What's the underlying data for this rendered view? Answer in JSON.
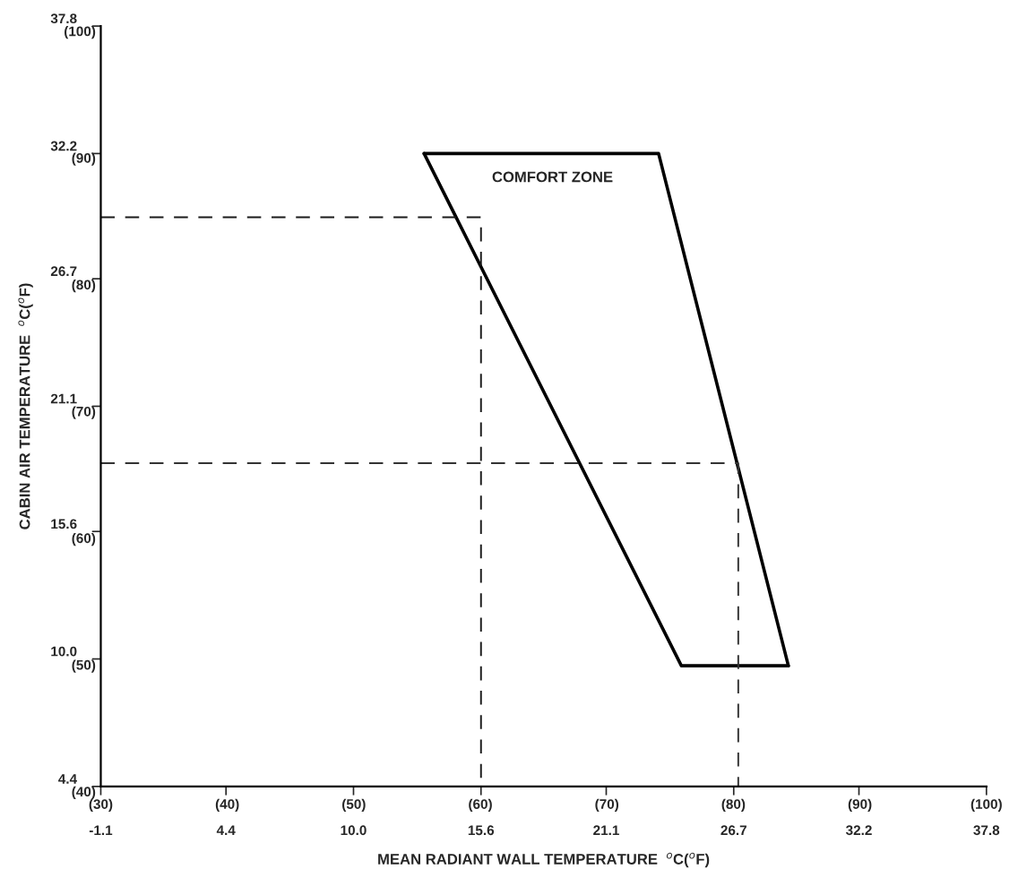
{
  "chart_data": {
    "type": "line",
    "xlabel": "MEAN RADIANT WALL TEMPERATURE  $^{o}$C($^{o}$F)",
    "ylabel": "CABIN AIR TEMPERATURE  $^{o}$C($^{o}$F)",
    "xlim": [
      -1.1,
      37.8
    ],
    "ylim": [
      4.4,
      37.8
    ],
    "xticks": [
      -1.1,
      4.4,
      {
        "value": 10,
        "label": "10.0"
      },
      15.6,
      21.1,
      26.7,
      32.2,
      37.8
    ],
    "yticks": [
      4.4,
      {
        "value": 10,
        "label": "10.0"
      },
      15.6,
      21.1,
      26.7,
      32.2,
      37.8
    ],
    "x2lim": [
      30,
      100
    ],
    "x2ticks": [
      {
        "value": 30,
        "label": "(30)"
      },
      {
        "value": 40,
        "label": "(40)"
      },
      {
        "value": 50,
        "label": "(50)"
      },
      {
        "value": 60,
        "label": "(60)"
      },
      {
        "value": 70,
        "label": "(70)"
      },
      {
        "value": 80,
        "label": "(80)"
      },
      {
        "value": 90,
        "label": "(90)"
      },
      {
        "value": 100,
        "label": "(100)"
      }
    ],
    "y2lim": [
      40,
      100
    ],
    "y2ticks": [
      {
        "value": 40,
        "label": "(40)"
      },
      {
        "value": 50,
        "label": "(50)"
      },
      {
        "value": 60,
        "label": "(60)"
      },
      {
        "value": 70,
        "label": "(70)"
      },
      {
        "value": 80,
        "label": "(80)"
      },
      {
        "value": 90,
        "label": "(90)"
      },
      {
        "value": 100,
        "label": "(100)"
      }
    ],
    "grid": false,
    "legend": false,
    "marker": "none",
    "series": [
      {
        "color": "#000000",
        "line_style": "solid",
        "x": [
          13.1,
          23.4,
          29.1
        ],
        "values": [
          32.2,
          32.2,
          9.7
        ]
      },
      {
        "color": "#000000",
        "line_style": "solid",
        "x": [
          13.1,
          24.4,
          29.1
        ],
        "values": [
          32.2,
          9.7,
          9.7
        ]
      },
      {
        "color": "#1a1a1a",
        "line_style": "dashed",
        "x": [
          -1.1,
          15.6,
          15.6
        ],
        "values": [
          29.4,
          29.4,
          4.4
        ]
      },
      {
        "color": "#333333",
        "line_style": "dashed",
        "x": [
          -1.1,
          26.9,
          26.9
        ],
        "values": [
          18.6,
          18.6,
          4.4
        ]
      }
    ],
    "annotations": [
      "COMFORT ZONE"
    ]
  }
}
